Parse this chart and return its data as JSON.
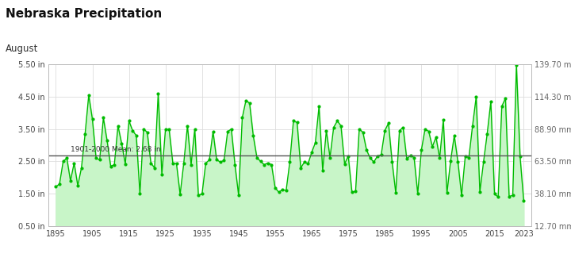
{
  "title": "Nebraska Precipitation",
  "subtitle": "August",
  "mean_label": "1901-2000 Mean: 2.68 in",
  "mean_value": 2.68,
  "ylabel_right_labels": [
    "139.70 mm",
    "114.30 mm",
    "88.90 mm",
    "63.50 mm",
    "38.10 mm",
    "12.70 mm"
  ],
  "ylabel_right_values": [
    5.5,
    4.5,
    3.5,
    2.5,
    1.5,
    0.5
  ],
  "ylim": [
    0.5,
    5.5
  ],
  "yticks_left": [
    0.5,
    1.5,
    2.5,
    3.5,
    4.5,
    5.5
  ],
  "ytick_labels_left": [
    "0.50 in",
    "1.50 in",
    "2.50 in",
    "3.50 in",
    "4.50 in",
    "5.50 in"
  ],
  "line_color": "#00bb00",
  "fill_color": "#c8f5c8",
  "mean_line_color": "#555555",
  "background_color": "#ffffff",
  "grid_color": "#dddddd",
  "xlim_left": 1893,
  "xlim_right": 2025,
  "years": [
    1895,
    1896,
    1897,
    1898,
    1899,
    1900,
    1901,
    1902,
    1903,
    1904,
    1905,
    1906,
    1907,
    1908,
    1909,
    1910,
    1911,
    1912,
    1913,
    1914,
    1915,
    1916,
    1917,
    1918,
    1919,
    1920,
    1921,
    1922,
    1923,
    1924,
    1925,
    1926,
    1927,
    1928,
    1929,
    1930,
    1931,
    1932,
    1933,
    1934,
    1935,
    1936,
    1937,
    1938,
    1939,
    1940,
    1941,
    1942,
    1943,
    1944,
    1945,
    1946,
    1947,
    1948,
    1949,
    1950,
    1951,
    1952,
    1953,
    1954,
    1955,
    1956,
    1957,
    1958,
    1959,
    1960,
    1961,
    1962,
    1963,
    1964,
    1965,
    1966,
    1967,
    1968,
    1969,
    1970,
    1971,
    1972,
    1973,
    1974,
    1975,
    1976,
    1977,
    1978,
    1979,
    1980,
    1981,
    1982,
    1983,
    1984,
    1985,
    1986,
    1987,
    1988,
    1989,
    1990,
    1991,
    1992,
    1993,
    1994,
    1995,
    1996,
    1997,
    1998,
    1999,
    2000,
    2001,
    2002,
    2003,
    2004,
    2005,
    2006,
    2007,
    2008,
    2009,
    2010,
    2011,
    2012,
    2013,
    2014,
    2015,
    2016,
    2017,
    2018,
    2019,
    2020,
    2021,
    2022,
    2023
  ],
  "values": [
    1.72,
    1.8,
    2.5,
    2.6,
    1.9,
    2.45,
    1.75,
    2.3,
    3.35,
    4.55,
    3.8,
    2.6,
    2.55,
    3.85,
    3.15,
    2.35,
    2.4,
    3.6,
    3.05,
    2.42,
    3.75,
    3.45,
    3.3,
    1.5,
    3.5,
    3.4,
    2.45,
    2.3,
    4.6,
    2.1,
    3.5,
    3.48,
    2.45,
    2.43,
    1.48,
    2.45,
    3.6,
    2.4,
    3.5,
    1.45,
    1.5,
    2.44,
    2.55,
    3.42,
    2.55,
    2.48,
    2.53,
    3.42,
    3.5,
    2.4,
    1.45,
    3.85,
    4.38,
    4.3,
    3.3,
    2.62,
    2.5,
    2.4,
    2.45,
    2.4,
    1.68,
    1.55,
    1.63,
    1.6,
    2.48,
    3.75,
    3.7,
    2.3,
    2.48,
    2.43,
    2.78,
    3.08,
    4.2,
    2.22,
    3.45,
    2.62,
    3.55,
    3.75,
    3.6,
    2.42,
    2.67,
    1.55,
    1.58,
    3.5,
    3.4,
    2.85,
    2.6,
    2.48,
    2.67,
    2.7,
    3.45,
    3.68,
    2.48,
    1.52,
    3.45,
    3.55,
    2.58,
    2.68,
    2.62,
    1.5,
    2.85,
    3.5,
    3.43,
    2.95,
    3.25,
    2.6,
    3.78,
    1.52,
    2.52,
    3.3,
    2.48,
    1.45,
    2.65,
    2.62,
    3.6,
    4.5,
    1.55,
    2.48,
    3.35,
    4.35,
    1.5,
    1.4,
    4.2,
    4.45,
    1.42,
    1.45,
    5.48,
    2.65,
    1.28
  ]
}
